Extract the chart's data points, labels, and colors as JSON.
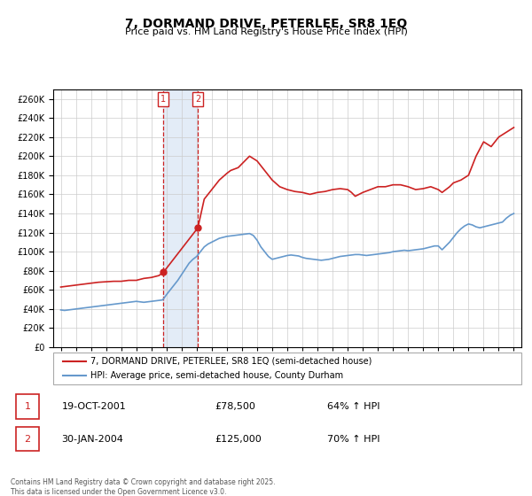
{
  "title": "7, DORMAND DRIVE, PETERLEE, SR8 1EQ",
  "subtitle": "Price paid vs. HM Land Registry's House Price Index (HPI)",
  "xlabel": "",
  "ylabel": "",
  "background_color": "#ffffff",
  "plot_bg_color": "#ffffff",
  "grid_color": "#cccccc",
  "hpi_color": "#6699cc",
  "price_color": "#cc2222",
  "sale1_date": 2001.8,
  "sale1_price": 78500,
  "sale1_label": "1",
  "sale1_date_str": "19-OCT-2001",
  "sale1_price_str": "£78,500",
  "sale1_hpi_str": "64% ↑ HPI",
  "sale2_date": 2004.08,
  "sale2_price": 125000,
  "sale2_label": "2",
  "sale2_date_str": "30-JAN-2004",
  "sale2_price_str": "£125,000",
  "sale2_hpi_str": "70% ↑ HPI",
  "shade_x1": 2001.8,
  "shade_x2": 2004.08,
  "ylim_min": 0,
  "ylim_max": 270000,
  "xlim_min": 1994.5,
  "xlim_max": 2025.5,
  "ytick_step": 20000,
  "legend_label_price": "7, DORMAND DRIVE, PETERLEE, SR8 1EQ (semi-detached house)",
  "legend_label_hpi": "HPI: Average price, semi-detached house, County Durham",
  "footer": "Contains HM Land Registry data © Crown copyright and database right 2025.\nThis data is licensed under the Open Government Licence v3.0.",
  "hpi_x": [
    1995,
    1995.25,
    1995.5,
    1995.75,
    1996,
    1996.25,
    1996.5,
    1996.75,
    1997,
    1997.25,
    1997.5,
    1997.75,
    1998,
    1998.25,
    1998.5,
    1998.75,
    1999,
    1999.25,
    1999.5,
    1999.75,
    2000,
    2000.25,
    2000.5,
    2000.75,
    2001,
    2001.25,
    2001.5,
    2001.75,
    2002,
    2002.25,
    2002.5,
    2002.75,
    2003,
    2003.25,
    2003.5,
    2003.75,
    2004,
    2004.25,
    2004.5,
    2004.75,
    2005,
    2005.25,
    2005.5,
    2005.75,
    2006,
    2006.25,
    2006.5,
    2006.75,
    2007,
    2007.25,
    2007.5,
    2007.75,
    2008,
    2008.25,
    2008.5,
    2008.75,
    2009,
    2009.25,
    2009.5,
    2009.75,
    2010,
    2010.25,
    2010.5,
    2010.75,
    2011,
    2011.25,
    2011.5,
    2011.75,
    2012,
    2012.25,
    2012.5,
    2012.75,
    2013,
    2013.25,
    2013.5,
    2013.75,
    2014,
    2014.25,
    2014.5,
    2014.75,
    2015,
    2015.25,
    2015.5,
    2015.75,
    2016,
    2016.25,
    2016.5,
    2016.75,
    2017,
    2017.25,
    2017.5,
    2017.75,
    2018,
    2018.25,
    2018.5,
    2018.75,
    2019,
    2019.25,
    2019.5,
    2019.75,
    2020,
    2020.25,
    2020.5,
    2020.75,
    2021,
    2021.25,
    2021.5,
    2021.75,
    2022,
    2022.25,
    2022.5,
    2022.75,
    2023,
    2023.25,
    2023.5,
    2023.75,
    2024,
    2024.25,
    2024.5,
    2024.75,
    2025
  ],
  "hpi_y": [
    39000,
    38500,
    39000,
    39500,
    40000,
    40500,
    41000,
    41500,
    42000,
    42500,
    43000,
    43500,
    44000,
    44500,
    45000,
    45500,
    46000,
    46500,
    47000,
    47500,
    48000,
    47500,
    47000,
    47500,
    48000,
    48500,
    49000,
    49500,
    55000,
    60000,
    65000,
    70000,
    76000,
    82000,
    88000,
    92000,
    95000,
    100000,
    105000,
    108000,
    110000,
    112000,
    114000,
    115000,
    116000,
    116500,
    117000,
    117500,
    118000,
    118500,
    119000,
    117000,
    112000,
    105000,
    100000,
    95000,
    92000,
    93000,
    94000,
    95000,
    96000,
    96500,
    96000,
    95500,
    94000,
    93000,
    92500,
    92000,
    91500,
    91000,
    91500,
    92000,
    93000,
    94000,
    95000,
    95500,
    96000,
    96500,
    97000,
    97000,
    96500,
    96000,
    96500,
    97000,
    97500,
    98000,
    98500,
    99000,
    100000,
    100500,
    101000,
    101500,
    101000,
    101500,
    102000,
    102500,
    103000,
    104000,
    105000,
    106000,
    106000,
    102000,
    106000,
    110000,
    115000,
    120000,
    124000,
    127000,
    129000,
    128000,
    126000,
    125000,
    126000,
    127000,
    128000,
    129000,
    130000,
    131000,
    135000,
    138000,
    140000
  ],
  "price_x": [
    1995,
    1995.5,
    1996,
    1996.5,
    1997,
    1997.5,
    1998,
    1998.5,
    1999,
    1999.5,
    2000,
    2000.5,
    2001,
    2001.5,
    2001.8,
    2004.08,
    2004.5,
    2005,
    2005.5,
    2006,
    2006.25,
    2006.75,
    2007,
    2007.5,
    2008,
    2008.25,
    2008.5,
    2009,
    2009.5,
    2010,
    2010.5,
    2011,
    2011.5,
    2012,
    2012.5,
    2013,
    2013.5,
    2014,
    2014.25,
    2014.5,
    2015,
    2015.5,
    2016,
    2016.5,
    2017,
    2017.5,
    2018,
    2018.5,
    2019,
    2019.5,
    2020,
    2020.25,
    2020.75,
    2021,
    2021.5,
    2022,
    2022.5,
    2023,
    2023.5,
    2024,
    2024.5,
    2025
  ],
  "price_y": [
    63000,
    64000,
    65000,
    66000,
    67000,
    68000,
    68500,
    69000,
    69000,
    70000,
    70000,
    72000,
    73000,
    75000,
    78500,
    125000,
    155000,
    165000,
    175000,
    182000,
    185000,
    188000,
    192000,
    200000,
    195000,
    190000,
    185000,
    175000,
    168000,
    165000,
    163000,
    162000,
    160000,
    162000,
    163000,
    165000,
    166000,
    165000,
    162000,
    158000,
    162000,
    165000,
    168000,
    168000,
    170000,
    170000,
    168000,
    165000,
    166000,
    168000,
    165000,
    162000,
    168000,
    172000,
    175000,
    180000,
    200000,
    215000,
    210000,
    220000,
    225000,
    230000
  ]
}
